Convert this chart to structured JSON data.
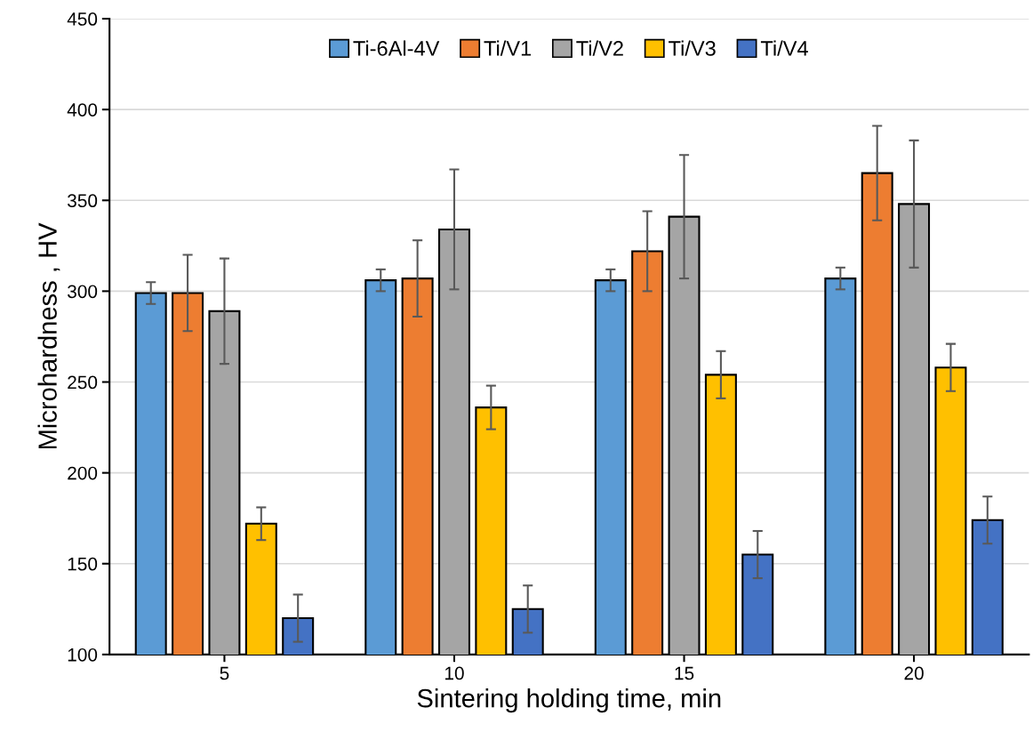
{
  "chart_data": {
    "type": "bar",
    "xlabel": "Sintering holding time, min",
    "ylabel": "Microhardness , HV",
    "categories": [
      "5",
      "10",
      "15",
      "20"
    ],
    "series": [
      {
        "name": "Ti-6Al-4V",
        "color": "#5b9bd5",
        "values": [
          299,
          306,
          306,
          307
        ],
        "errors": [
          6,
          6,
          6,
          6
        ]
      },
      {
        "name": "Ti/V1",
        "color": "#ed7d31",
        "values": [
          299,
          307,
          322,
          365
        ],
        "errors": [
          21,
          21,
          22,
          26
        ]
      },
      {
        "name": "Ti/V2",
        "color": "#a5a5a5",
        "values": [
          289,
          334,
          341,
          348
        ],
        "errors": [
          29,
          33,
          34,
          35
        ]
      },
      {
        "name": "Ti/V3",
        "color": "#ffc000",
        "values": [
          172,
          236,
          254,
          258
        ],
        "errors": [
          9,
          12,
          13,
          13
        ]
      },
      {
        "name": "Ti/V4",
        "color": "#4472c4",
        "values": [
          120,
          125,
          155,
          174
        ],
        "errors": [
          13,
          13,
          13,
          13
        ]
      }
    ],
    "ylim": [
      100,
      450
    ],
    "yticks": [
      100,
      150,
      200,
      250,
      300,
      350,
      400,
      450
    ],
    "grid": "y",
    "legend": "top"
  }
}
